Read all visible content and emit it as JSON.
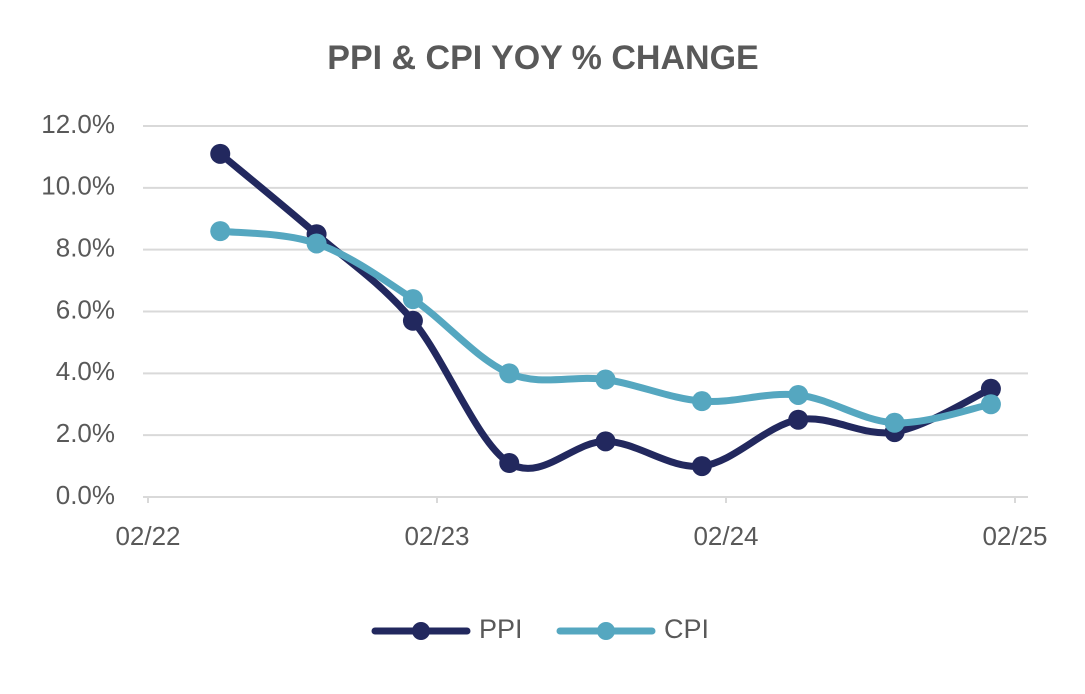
{
  "chart_data": {
    "type": "line",
    "title": "PPI & CPI YOY % CHANGE",
    "x": [
      "2022-05",
      "2022-09",
      "2023-01",
      "2023-05",
      "2023-09",
      "2024-01",
      "2024-05",
      "2024-09",
      "2025-01"
    ],
    "series": [
      {
        "name": "PPI",
        "color": "#22285e",
        "values": [
          11.1,
          8.5,
          5.7,
          1.1,
          1.8,
          1.0,
          2.5,
          2.1,
          3.5
        ]
      },
      {
        "name": "CPI",
        "color": "#55a7c0",
        "values": [
          8.6,
          8.2,
          6.4,
          4.0,
          3.8,
          3.1,
          3.3,
          2.4,
          3.0
        ]
      }
    ],
    "xlim": [
      "2022-02",
      "2025-02"
    ],
    "xticks": [
      {
        "value": "2022-02",
        "label": "02/22"
      },
      {
        "value": "2023-02",
        "label": "02/23"
      },
      {
        "value": "2024-02",
        "label": "02/24"
      },
      {
        "value": "2025-02",
        "label": "02/25"
      }
    ],
    "ylim": [
      0,
      12
    ],
    "yticks": [
      {
        "value": 0,
        "label": "0.0%"
      },
      {
        "value": 2,
        "label": "2.0%"
      },
      {
        "value": 4,
        "label": "4.0%"
      },
      {
        "value": 6,
        "label": "6.0%"
      },
      {
        "value": 8,
        "label": "8.0%"
      },
      {
        "value": 10,
        "label": "10.0%"
      },
      {
        "value": 12,
        "label": "12.0%"
      }
    ],
    "grid": true,
    "smooth": true,
    "legend": "bottom"
  }
}
